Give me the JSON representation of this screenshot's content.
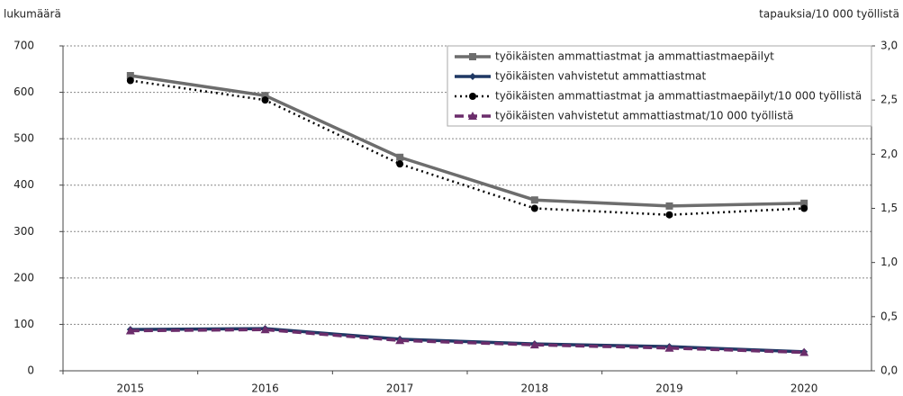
{
  "chart_data": {
    "type": "line",
    "ylabel": "lukumäärä",
    "y2label": "tapauksia/10 000 työllistä",
    "categories": [
      "2015",
      "2016",
      "2017",
      "2018",
      "2019",
      "2020"
    ],
    "ylim": [
      0,
      700
    ],
    "yticks": [
      0,
      100,
      200,
      300,
      400,
      500,
      600,
      700
    ],
    "y2lim": [
      0,
      3
    ],
    "y2ticks": [
      {
        "value": 0,
        "label": "0,0"
      },
      {
        "value": 0.5,
        "label": "0,5"
      },
      {
        "value": 1,
        "label": "1,0"
      },
      {
        "value": 1.5,
        "label": "1,5"
      },
      {
        "value": 2,
        "label": "2,0"
      },
      {
        "value": 2.5,
        "label": "2,5"
      },
      {
        "value": 3,
        "label": "3,0"
      }
    ],
    "grid": true,
    "legend": "upper right",
    "series": [
      {
        "name": "työikäisten ammattiastmat ja ammattiastmaepäilyt",
        "color": "#6d6d6d",
        "marker": "square",
        "line_style": "solid",
        "values": [
          636,
          593,
          460,
          368,
          355,
          361
        ]
      },
      {
        "name": "työikäisten vahvistetut ammattiastmat",
        "color": "#1f3864",
        "marker": "diamond",
        "line_style": "solid",
        "values": [
          89,
          91,
          68,
          58,
          52,
          41
        ]
      },
      {
        "name": "työikäisten ammattiastmat ja ammattiastmaepäilyt/10 000 työllistä",
        "color": "#000000",
        "marker": "circle",
        "line_style": "dotted",
        "axis": "y2",
        "values": [
          2.68,
          2.5,
          1.91,
          1.5,
          1.44,
          1.5
        ]
      },
      {
        "name": "työikäisten vahvistetut ammattiastmat/10 000 työllistä",
        "color": "#6b2d6b",
        "marker": "triangle",
        "line_style": "dashed",
        "axis": "y2",
        "values": [
          0.37,
          0.38,
          0.28,
          0.24,
          0.21,
          0.17
        ]
      }
    ]
  }
}
